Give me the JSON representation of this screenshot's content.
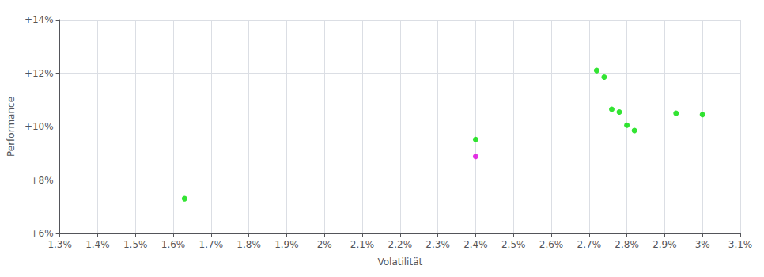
{
  "chart_data": {
    "type": "scatter",
    "xlabel": "Volatilität",
    "ylabel": "Performance",
    "xlim": [
      0.013,
      0.031
    ],
    "ylim": [
      0.06,
      0.14
    ],
    "xticks": [
      {
        "value": 0.013,
        "label": "1.3%"
      },
      {
        "value": 0.014,
        "label": "1.4%"
      },
      {
        "value": 0.015,
        "label": "1.5%"
      },
      {
        "value": 0.016,
        "label": "1.6%"
      },
      {
        "value": 0.017,
        "label": "1.7%"
      },
      {
        "value": 0.018,
        "label": "1.8%"
      },
      {
        "value": 0.019,
        "label": "1.9%"
      },
      {
        "value": 0.02,
        "label": "2%"
      },
      {
        "value": 0.021,
        "label": "2.1%"
      },
      {
        "value": 0.022,
        "label": "2.2%"
      },
      {
        "value": 0.023,
        "label": "2.3%"
      },
      {
        "value": 0.024,
        "label": "2.4%"
      },
      {
        "value": 0.025,
        "label": "2.5%"
      },
      {
        "value": 0.026,
        "label": "2.6%"
      },
      {
        "value": 0.027,
        "label": "2.7%"
      },
      {
        "value": 0.028,
        "label": "2.8%"
      },
      {
        "value": 0.029,
        "label": "2.9%"
      },
      {
        "value": 0.03,
        "label": "3%"
      },
      {
        "value": 0.031,
        "label": "3.1%"
      }
    ],
    "yticks": [
      {
        "value": 0.06,
        "label": "+6%"
      },
      {
        "value": 0.08,
        "label": "+8%"
      },
      {
        "value": 0.1,
        "label": "+10%"
      },
      {
        "value": 0.12,
        "label": "+12%"
      },
      {
        "value": 0.14,
        "label": "+14%"
      }
    ],
    "grid": true,
    "series": [
      {
        "color": "#00dd00",
        "x": [
          0.0163,
          0.024,
          0.0272,
          0.0274,
          0.0276,
          0.0278,
          0.028,
          0.0282,
          0.0293,
          0.03
        ],
        "values": [
          0.073,
          0.0952,
          0.121,
          0.1185,
          0.1065,
          0.1055,
          0.1005,
          0.0985,
          0.105,
          0.1045
        ]
      },
      {
        "color": "#dd00dd",
        "x": [
          0.024
        ],
        "values": [
          0.0888
        ]
      }
    ]
  }
}
